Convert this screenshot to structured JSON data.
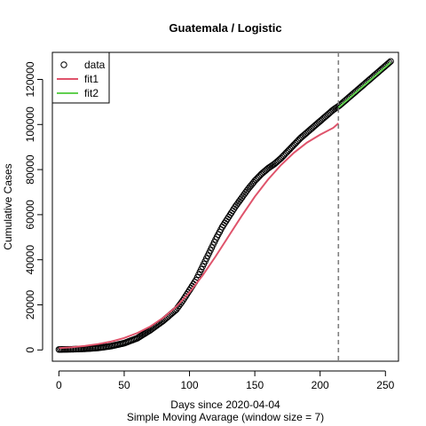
{
  "chart_data": {
    "type": "line",
    "title": "Guatemala / Logistic",
    "xlabel": "Days since 2020-04-04",
    "xlabel2": "Simple Moving Avarage (window size = 7)",
    "ylabel": "Cumulative Cases",
    "xlim": [
      -5,
      260
    ],
    "ylim": [
      -5000,
      132000
    ],
    "xticks": [
      0,
      50,
      100,
      150,
      200,
      250
    ],
    "yticks": [
      0,
      20000,
      40000,
      60000,
      80000,
      100000,
      120000
    ],
    "xtick_labels": [
      "0",
      "50",
      "100",
      "150",
      "200",
      "250"
    ],
    "ytick_labels": [
      "0",
      "20000",
      "40000",
      "60000",
      "80000",
      "100000",
      "120000"
    ],
    "vline_x": 214,
    "legend": {
      "position": "top-left",
      "entries": [
        "data",
        "fit1",
        "fit2"
      ]
    },
    "colors": {
      "data": "#000000",
      "fit1": "#DF536B",
      "fit2": "#61D04F",
      "vline": "#808080"
    },
    "series": [
      {
        "name": "data",
        "kind": "points",
        "x": [
          0,
          10,
          20,
          30,
          40,
          50,
          60,
          70,
          80,
          90,
          95,
          100,
          105,
          110,
          115,
          120,
          125,
          130,
          135,
          140,
          145,
          150,
          155,
          160,
          165,
          170,
          175,
          180,
          185,
          190,
          195,
          200,
          205,
          210,
          215,
          220,
          225,
          230,
          235,
          240,
          245,
          250,
          254
        ],
        "y": [
          200,
          300,
          500,
          900,
          1700,
          3000,
          5200,
          8800,
          13000,
          18000,
          22000,
          26500,
          31000,
          37000,
          43000,
          49000,
          54500,
          59000,
          63500,
          67500,
          71500,
          75000,
          78000,
          80500,
          82500,
          85000,
          88000,
          91000,
          94000,
          96500,
          99000,
          101500,
          104000,
          106500,
          108500,
          111000,
          113500,
          116000,
          118500,
          121000,
          123500,
          126000,
          128000
        ]
      },
      {
        "name": "fit1",
        "kind": "line",
        "x": [
          0,
          10,
          20,
          30,
          40,
          50,
          60,
          70,
          80,
          90,
          100,
          110,
          120,
          130,
          140,
          150,
          160,
          170,
          180,
          190,
          200,
          210,
          214
        ],
        "y": [
          800,
          1200,
          1800,
          2600,
          3700,
          5300,
          7500,
          10400,
          14300,
          19300,
          25500,
          33000,
          41500,
          50500,
          59500,
          68000,
          75500,
          82000,
          87500,
          92000,
          95500,
          98500,
          100500
        ]
      },
      {
        "name": "fit2",
        "kind": "line",
        "x": [
          214,
          220,
          225,
          230,
          235,
          240,
          245,
          250,
          254
        ],
        "y": [
          107500,
          110500,
          113000,
          115500,
          118000,
          120500,
          123000,
          125500,
          127500
        ]
      }
    ]
  }
}
